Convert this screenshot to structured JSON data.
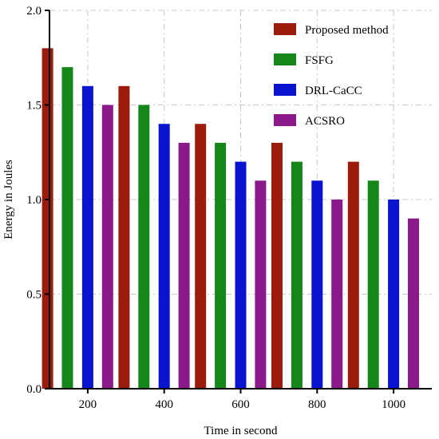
{
  "chart_data": {
    "type": "bar",
    "xlabel": "Time in second",
    "ylabel": "Energy in Joules",
    "x_ticks": [
      200,
      400,
      600,
      800,
      1000
    ],
    "xlim": [
      100,
      1100
    ],
    "ylim": [
      0,
      2.0
    ],
    "y_ticks": [
      "0.0",
      "0.5",
      "1.0",
      "1.5",
      "2.0"
    ],
    "group_centers": [
      200,
      400,
      600,
      800,
      1000
    ],
    "grid": true,
    "legend_position": "top-right",
    "series": [
      {
        "name": "Proposed method",
        "color": "#9b1c0c",
        "values": [
          1.8,
          1.6,
          1.4,
          1.3,
          1.2
        ]
      },
      {
        "name": "FSFG",
        "color": "#15871a",
        "values": [
          1.7,
          1.5,
          1.3,
          1.2,
          1.1
        ]
      },
      {
        "name": "DRL-CaCC",
        "color": "#0a14d0",
        "values": [
          1.6,
          1.4,
          1.2,
          1.1,
          1.0
        ]
      },
      {
        "name": "ACSRO",
        "color": "#8a1a8a",
        "values": [
          1.5,
          1.3,
          1.1,
          1.0,
          0.9
        ]
      }
    ]
  }
}
